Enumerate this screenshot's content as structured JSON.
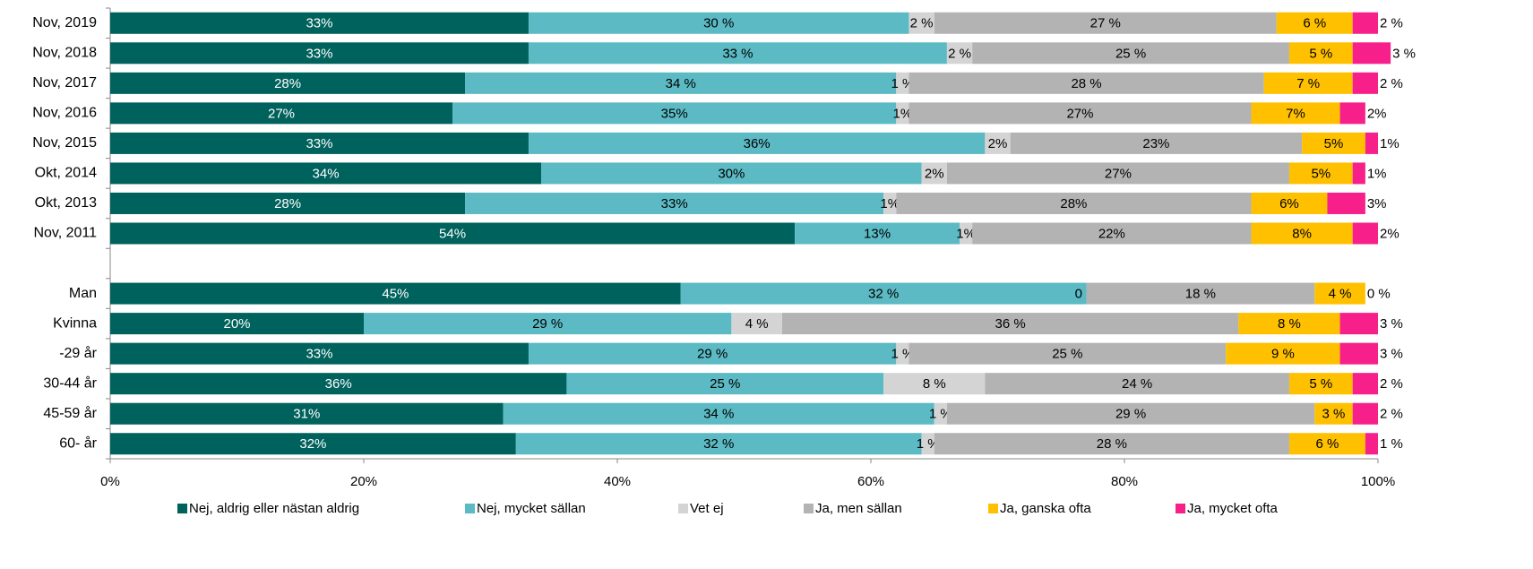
{
  "chart_data": {
    "type": "stacked-barh",
    "categories": [
      "Nov, 2019",
      "Nov, 2018",
      "Nov, 2017",
      "Nov, 2016",
      "Nov, 2015",
      "Okt, 2014",
      "Okt, 2013",
      "Nov, 2011",
      null,
      "Man",
      "Kvinna",
      "-29 år",
      "30-44 år",
      "45-59 år",
      "60- år"
    ],
    "series": [
      {
        "name": "Nej, aldrig eller nästan aldrig",
        "color": "#00625d",
        "values": [
          33,
          33,
          28,
          27,
          33,
          34,
          28,
          54,
          null,
          45,
          20,
          33,
          36,
          31,
          32
        ],
        "value_labels": [
          "33%",
          "33%",
          "28%",
          "27%",
          "33%",
          "34%",
          "28%",
          "54%",
          null,
          "45%",
          "20%",
          "33%",
          "36%",
          "31%",
          "32%"
        ]
      },
      {
        "name": "Nej, mycket sällan",
        "color": "#5bbac4",
        "values": [
          30,
          33,
          34,
          35,
          36,
          30,
          33,
          13,
          null,
          32,
          29,
          29,
          25,
          34,
          32
        ],
        "value_labels": [
          "30 %",
          "33 %",
          "34 %",
          "35%",
          "36%",
          "30%",
          "33%",
          "13%",
          null,
          "32 %",
          "29 %",
          "29 %",
          "25 %",
          "34 %",
          "32 %"
        ]
      },
      {
        "name": "Vet ej",
        "color": "#d4d4d4",
        "values": [
          2,
          2,
          1,
          1,
          2,
          2,
          1,
          1,
          null,
          0,
          4,
          1,
          8,
          1,
          1
        ],
        "value_labels": [
          "2 %",
          "2 %",
          "1 %",
          "1%",
          "2%",
          "2%",
          "1%",
          "1%",
          null,
          "0 %",
          "4 %",
          "1 %",
          "8 %",
          "1 %",
          "1 %"
        ]
      },
      {
        "name": "Ja, men sällan",
        "color": "#b3b3b3",
        "values": [
          27,
          25,
          28,
          27,
          23,
          27,
          28,
          22,
          null,
          18,
          36,
          25,
          24,
          29,
          28
        ],
        "value_labels": [
          "27 %",
          "25 %",
          "28 %",
          "27%",
          "23%",
          "27%",
          "28%",
          "22%",
          null,
          "18 %",
          "36 %",
          "25 %",
          "24 %",
          "29 %",
          "28 %"
        ]
      },
      {
        "name": "Ja, ganska ofta",
        "color": "#ffc000",
        "values": [
          6,
          5,
          7,
          7,
          5,
          5,
          6,
          8,
          null,
          4,
          8,
          9,
          5,
          3,
          6
        ],
        "value_labels": [
          "6 %",
          "5 %",
          "7 %",
          "7%",
          "5%",
          "5%",
          "6%",
          "8%",
          null,
          "4 %",
          "8 %",
          "9 %",
          "5 %",
          "3 %",
          "6 %"
        ]
      },
      {
        "name": "Ja, mycket ofta",
        "color": "#f7208a",
        "values": [
          2,
          3,
          2,
          2,
          1,
          1,
          3,
          2,
          null,
          0,
          3,
          3,
          2,
          2,
          1
        ],
        "value_labels": [
          "2 %",
          "3 %",
          "2 %",
          "2%",
          "1%",
          "1%",
          "3%",
          "2%",
          null,
          "0 %",
          "3 %",
          "3 %",
          "2 %",
          "2 %",
          "1 %"
        ]
      }
    ],
    "xlim": [
      0,
      100
    ],
    "xticks": [
      {
        "value": 0,
        "label": "0%"
      },
      {
        "value": 20,
        "label": "20%"
      },
      {
        "value": 40,
        "label": "40%"
      },
      {
        "value": 60,
        "label": "60%"
      },
      {
        "value": 80,
        "label": "80%"
      },
      {
        "value": 100,
        "label": "100%"
      }
    ],
    "legend": "bottom"
  }
}
